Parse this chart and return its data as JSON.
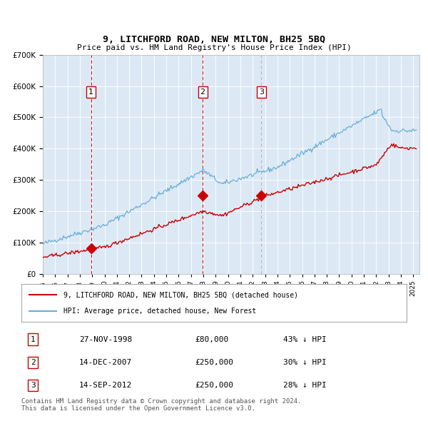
{
  "title": "9, LITCHFORD ROAD, NEW MILTON, BH25 5BQ",
  "subtitle": "Price paid vs. HM Land Registry's House Price Index (HPI)",
  "background_color": "#dce9f5",
  "plot_bg_color": "#dce9f5",
  "ylim": [
    0,
    700000
  ],
  "yticks": [
    0,
    100000,
    200000,
    300000,
    400000,
    500000,
    600000,
    700000
  ],
  "xlim_start": 1995.0,
  "xlim_end": 2025.5,
  "sale_dates": [
    1998.9,
    2007.95,
    2012.7
  ],
  "sale_prices": [
    80000,
    250000,
    250000
  ],
  "sale_labels": [
    "1",
    "2",
    "3"
  ],
  "legend_red": "9, LITCHFORD ROAD, NEW MILTON, BH25 5BQ (detached house)",
  "legend_blue": "HPI: Average price, detached house, New Forest",
  "table_data": [
    [
      "1",
      "27-NOV-1998",
      "£80,000",
      "43% ↓ HPI"
    ],
    [
      "2",
      "14-DEC-2007",
      "£250,000",
      "30% ↓ HPI"
    ],
    [
      "3",
      "14-SEP-2012",
      "£250,000",
      "28% ↓ HPI"
    ]
  ],
  "footnote": "Contains HM Land Registry data © Crown copyright and database right 2024.\nThis data is licensed under the Open Government Licence v3.0.",
  "red_color": "#cc0000",
  "blue_color": "#6baed6",
  "dashed_red_color": "#cc0000",
  "dashed_gray_color": "#999999"
}
